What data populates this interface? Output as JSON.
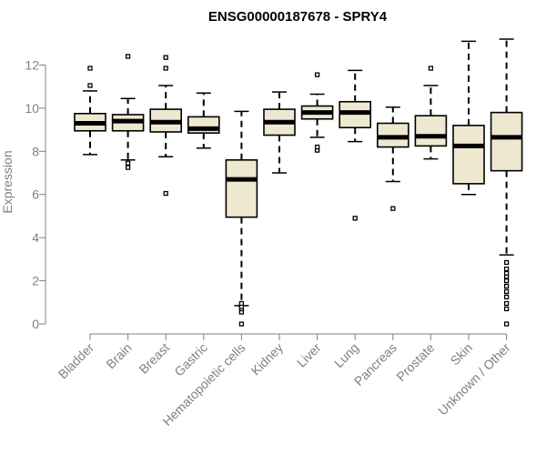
{
  "chart_data": {
    "type": "boxplot",
    "title": "ENSG00000187678 - SPRY4",
    "xlabel": "",
    "ylabel": "Expression",
    "ylim": [
      0,
      13.2
    ],
    "yticks": [
      0,
      2,
      4,
      6,
      8,
      10,
      12
    ],
    "grid": false,
    "colors": {
      "box_fill": "#EEE8D0",
      "stroke": "#000000",
      "axis": "#808080",
      "tick_text": "#808080"
    },
    "boxes": [
      {
        "category": "Bladder",
        "whisker_low": 7.85,
        "q1": 8.95,
        "median": 9.3,
        "q3": 9.75,
        "whisker_high": 10.8,
        "outliers": [
          11.05,
          11.85
        ]
      },
      {
        "category": "Brain",
        "whisker_low": 7.6,
        "q1": 8.95,
        "median": 9.4,
        "q3": 9.7,
        "whisker_high": 10.45,
        "outliers": [
          7.25,
          7.45,
          12.4
        ]
      },
      {
        "category": "Breast",
        "whisker_low": 7.75,
        "q1": 8.9,
        "median": 9.35,
        "q3": 9.95,
        "whisker_high": 11.05,
        "outliers": [
          6.05,
          11.85,
          12.35
        ]
      },
      {
        "category": "Gastric",
        "whisker_low": 8.15,
        "q1": 8.85,
        "median": 9.05,
        "q3": 9.6,
        "whisker_high": 10.7,
        "outliers": []
      },
      {
        "category": "Hematopoietic cells",
        "whisker_low": 0.85,
        "q1": 4.95,
        "median": 6.7,
        "q3": 7.6,
        "whisker_high": 9.85,
        "outliers": [
          0.0,
          0.55,
          0.7,
          0.8,
          0.95
        ]
      },
      {
        "category": "Kidney",
        "whisker_low": 7.0,
        "q1": 8.75,
        "median": 9.35,
        "q3": 9.95,
        "whisker_high": 10.75,
        "outliers": []
      },
      {
        "category": "Liver",
        "whisker_low": 8.65,
        "q1": 9.5,
        "median": 9.8,
        "q3": 10.1,
        "whisker_high": 10.65,
        "outliers": [
          8.05,
          8.2,
          11.55
        ]
      },
      {
        "category": "Lung",
        "whisker_low": 8.45,
        "q1": 9.1,
        "median": 9.8,
        "q3": 10.3,
        "whisker_high": 11.75,
        "outliers": [
          4.9
        ]
      },
      {
        "category": "Pancreas",
        "whisker_low": 6.6,
        "q1": 8.2,
        "median": 8.65,
        "q3": 9.3,
        "whisker_high": 10.05,
        "outliers": [
          5.35
        ]
      },
      {
        "category": "Prostate",
        "whisker_low": 7.65,
        "q1": 8.25,
        "median": 8.7,
        "q3": 9.65,
        "whisker_high": 11.05,
        "outliers": [
          11.85
        ]
      },
      {
        "category": "Skin",
        "whisker_low": 6.0,
        "q1": 6.5,
        "median": 8.25,
        "q3": 9.2,
        "whisker_high": 13.1,
        "outliers": []
      },
      {
        "category": "Unknown / Other",
        "whisker_low": 3.2,
        "q1": 7.1,
        "median": 8.65,
        "q3": 9.8,
        "whisker_high": 13.2,
        "outliers": [
          0.0,
          0.7,
          0.95,
          1.25,
          1.5,
          1.75,
          2.0,
          2.2,
          2.35,
          2.55,
          2.85
        ]
      }
    ]
  }
}
